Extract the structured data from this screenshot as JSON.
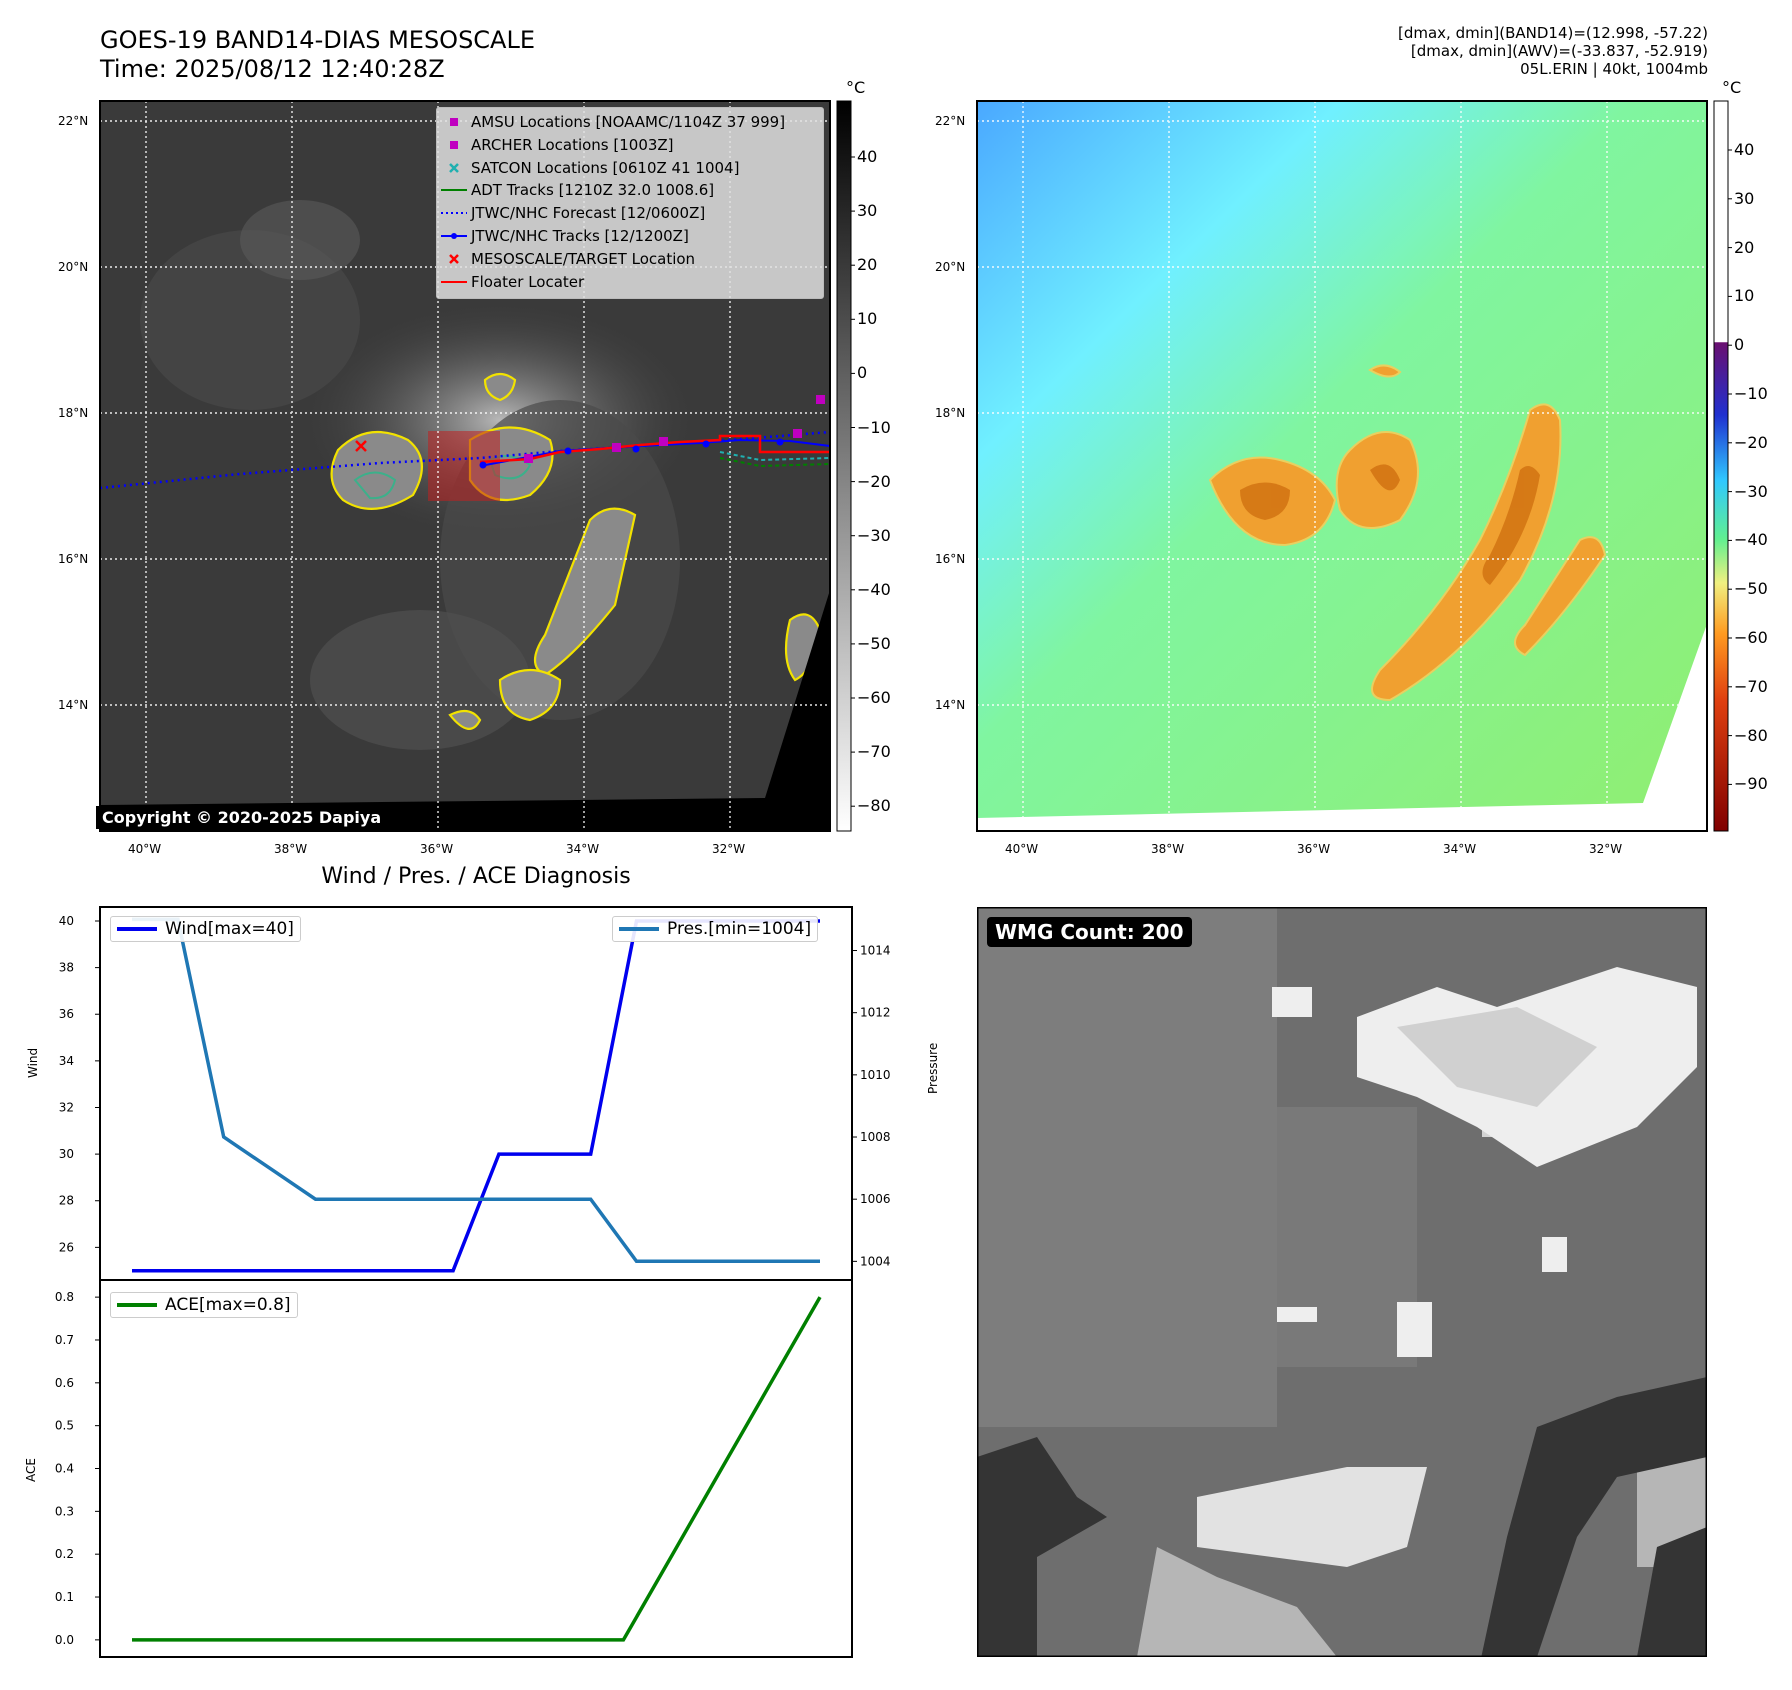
{
  "header": {
    "title_line1": "GOES-19 BAND14-DIAS MESOSCALE",
    "title_line2": "Time: 2025/08/12 12:40:28Z",
    "info_line1": "[dmax, dmin](BAND14)=(12.998, -57.22)",
    "info_line2": "[dmax, dmin](AWV)=(-33.837, -52.919)",
    "info_line3": "05L.ERIN | 40kt, 1004mb"
  },
  "map_axes": {
    "lat_labels": [
      "22°N",
      "20°N",
      "18°N",
      "16°N",
      "14°N"
    ],
    "lon_labels": [
      "40°W",
      "38°W",
      "36°W",
      "34°W",
      "32°W"
    ]
  },
  "ir_panel": {
    "colorbar_unit": "°C",
    "colorbar_ticks": [
      "40",
      "30",
      "20",
      "10",
      "0",
      "−10",
      "−20",
      "−30",
      "−40",
      "−50",
      "−60",
      "−70",
      "−80"
    ],
    "legend": [
      {
        "label": "AMSU Locations [NOAAMC/1104Z 37 999]",
        "symbol": "square",
        "color": "#c000c0"
      },
      {
        "label": "ARCHER Locations [1003Z]",
        "symbol": "square",
        "color": "#c000c0"
      },
      {
        "label": "SATCON Locations [0610Z 41 1004]",
        "symbol": "x",
        "color": "#20b0b0"
      },
      {
        "label": "ADT Tracks [1210Z 32.0 1008.6]",
        "symbol": "line",
        "color": "#008000"
      },
      {
        "label": "JTWC/NHC Forecast [12/0600Z]",
        "symbol": "dotted",
        "color": "#0000ff"
      },
      {
        "label": "JTWC/NHC Tracks [12/1200Z]",
        "symbol": "line-dot",
        "color": "#0000ff"
      },
      {
        "label": "MESOSCALE/TARGET Location",
        "symbol": "x",
        "color": "#ff0000"
      },
      {
        "label": "Floater Locater",
        "symbol": "line",
        "color": "#ff0000"
      }
    ],
    "copyright": "Copyright © 2020-2025 Dapiya"
  },
  "wv_panel": {
    "colorbar_unit": "°C",
    "colorbar_ticks": [
      "40",
      "30",
      "20",
      "10",
      "0",
      "−10",
      "−20",
      "−30",
      "−40",
      "−50",
      "−60",
      "−70",
      "−80",
      "−90"
    ]
  },
  "chart_data": {
    "type": "line",
    "title": "Wind / Pres. / ACE Diagnosis",
    "panels": [
      {
        "ylabel": "Wind",
        "ylabel_right": "Pressure",
        "y_ticks": [
          "40",
          "38",
          "36",
          "34",
          "32",
          "30",
          "28",
          "26"
        ],
        "y2_ticks": [
          "1014",
          "1012",
          "1010",
          "1008",
          "1006",
          "1004"
        ],
        "ylim": [
          24.6,
          40.6
        ],
        "y2lim": [
          1003.4,
          1015.4
        ],
        "series": [
          {
            "name": "Wind[max=40]",
            "axis": "left",
            "color": "#0000ee",
            "values": [
              25,
              25,
              25,
              25,
              25,
              25,
              25,
              25,
              30,
              30,
              30,
              40,
              40,
              40,
              40,
              40
            ]
          },
          {
            "name": "Pres.[min=1004]",
            "axis": "right",
            "color": "#1f77b4",
            "values": [
              1015,
              1015,
              1008,
              1007,
              1006,
              1006,
              1006,
              1006,
              1006,
              1006,
              1006,
              1004,
              1004,
              1004,
              1004,
              1004
            ]
          }
        ]
      },
      {
        "ylabel": "ACE",
        "y_ticks": [
          "0.8",
          "0.7",
          "0.6",
          "0.5",
          "0.4",
          "0.3",
          "0.2",
          "0.1",
          "0.0"
        ],
        "ylim": [
          -0.04,
          0.84
        ],
        "series": [
          {
            "name": "ACE[max=0.8]",
            "color": "#008000",
            "values": [
              0,
              0,
              0,
              0,
              0,
              0,
              0,
              0,
              0,
              0,
              0,
              0.2,
              0.4,
              0.6,
              0.8
            ]
          }
        ]
      }
    ]
  },
  "wmg_panel": {
    "label": "WMG Count: 200"
  }
}
